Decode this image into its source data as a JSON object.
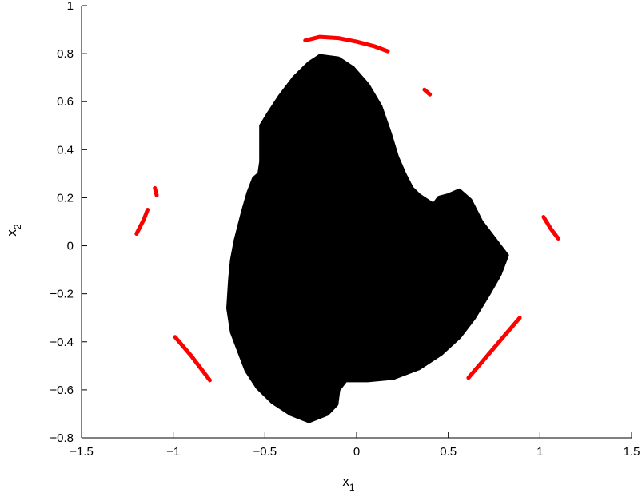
{
  "chart_data": {
    "type": "scatter",
    "title": "",
    "xlabel_base": "x",
    "xlabel_sub": "1",
    "ylabel_base": "x",
    "ylabel_sub": "2",
    "xlim": [
      -1.5,
      1.5
    ],
    "ylim": [
      -0.8,
      1.0
    ],
    "grid": false,
    "x_ticks": [
      -1.5,
      -1,
      -0.5,
      0,
      0.5,
      1,
      1.5
    ],
    "x_tick_labels": [
      "−1.5",
      "−1",
      "−0.5",
      "0",
      "0.5",
      "1",
      "1.5"
    ],
    "y_ticks": [
      -0.8,
      -0.6,
      -0.4,
      -0.2,
      0,
      0.2,
      0.4,
      0.6,
      0.8,
      1
    ],
    "y_tick_labels": [
      "−0.8",
      "−0.6",
      "−0.4",
      "−0.2",
      "0",
      "0.2",
      "0.4",
      "0.6",
      "0.8",
      "1"
    ],
    "series": [
      {
        "color": "#000000",
        "kind": "region",
        "boundary": [
          [
            -0.2,
            0.79
          ],
          [
            -0.1,
            0.78
          ],
          [
            -0.02,
            0.74
          ],
          [
            0.06,
            0.67
          ],
          [
            0.13,
            0.58
          ],
          [
            0.18,
            0.47
          ],
          [
            0.22,
            0.37
          ],
          [
            0.26,
            0.3
          ],
          [
            0.3,
            0.24
          ],
          [
            0.34,
            0.21
          ],
          [
            0.38,
            0.19
          ],
          [
            0.42,
            0.17
          ],
          [
            0.45,
            0.2
          ],
          [
            0.5,
            0.21
          ],
          [
            0.56,
            0.23
          ],
          [
            0.62,
            0.19
          ],
          [
            0.68,
            0.1
          ],
          [
            0.74,
            0.04
          ],
          [
            0.79,
            -0.01
          ],
          [
            0.82,
            -0.04
          ],
          [
            0.78,
            -0.12
          ],
          [
            0.72,
            -0.2
          ],
          [
            0.64,
            -0.3
          ],
          [
            0.56,
            -0.38
          ],
          [
            0.46,
            -0.45
          ],
          [
            0.34,
            -0.51
          ],
          [
            0.2,
            -0.55
          ],
          [
            0.06,
            -0.56
          ],
          [
            -0.06,
            -0.56
          ],
          [
            -0.1,
            -0.6
          ],
          [
            -0.11,
            -0.66
          ],
          [
            -0.16,
            -0.7
          ],
          [
            -0.26,
            -0.73
          ],
          [
            -0.36,
            -0.7
          ],
          [
            -0.46,
            -0.65
          ],
          [
            -0.54,
            -0.59
          ],
          [
            -0.6,
            -0.52
          ],
          [
            -0.64,
            -0.44
          ],
          [
            -0.68,
            -0.36
          ],
          [
            -0.7,
            -0.26
          ],
          [
            -0.69,
            -0.14
          ],
          [
            -0.68,
            -0.06
          ],
          [
            -0.66,
            0.02
          ],
          [
            -0.64,
            0.08
          ],
          [
            -0.62,
            0.14
          ],
          [
            -0.59,
            0.22
          ],
          [
            -0.56,
            0.28
          ],
          [
            -0.53,
            0.3
          ],
          [
            -0.52,
            0.35
          ],
          [
            -0.52,
            0.42
          ],
          [
            -0.52,
            0.5
          ],
          [
            -0.48,
            0.55
          ],
          [
            -0.42,
            0.62
          ],
          [
            -0.34,
            0.7
          ],
          [
            -0.26,
            0.76
          ],
          [
            -0.2,
            0.79
          ]
        ]
      },
      {
        "color": "#ff0000",
        "kind": "arcs",
        "segments": [
          [
            [
              -0.28,
              0.855
            ],
            [
              -0.2,
              0.87
            ],
            [
              -0.1,
              0.865
            ],
            [
              0.0,
              0.85
            ],
            [
              0.1,
              0.83
            ],
            [
              0.17,
              0.81
            ]
          ],
          [
            [
              0.37,
              0.65
            ],
            [
              0.4,
              0.63
            ]
          ],
          [
            [
              -1.1,
              0.24
            ],
            [
              -1.09,
              0.21
            ]
          ],
          [
            [
              -1.14,
              0.15
            ],
            [
              -1.16,
              0.11
            ],
            [
              -1.2,
              0.05
            ]
          ],
          [
            [
              1.02,
              0.12
            ],
            [
              1.06,
              0.07
            ],
            [
              1.1,
              0.03
            ]
          ],
          [
            [
              0.89,
              -0.3
            ],
            [
              0.8,
              -0.38
            ],
            [
              0.7,
              -0.47
            ],
            [
              0.61,
              -0.55
            ]
          ],
          [
            [
              -0.99,
              -0.38
            ],
            [
              -0.9,
              -0.46
            ],
            [
              -0.8,
              -0.56
            ]
          ]
        ]
      }
    ]
  }
}
